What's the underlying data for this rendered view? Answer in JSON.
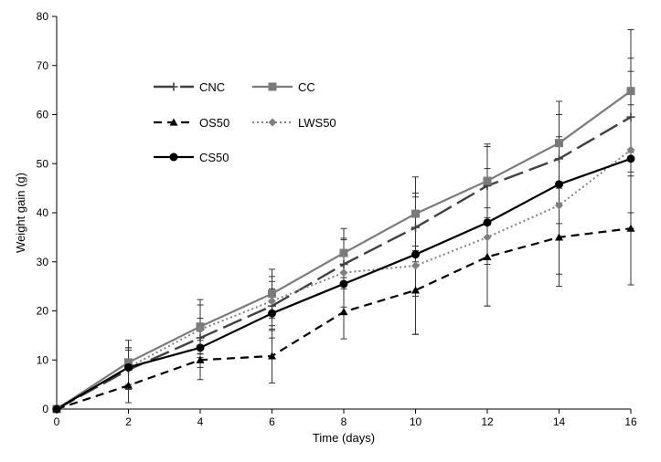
{
  "chart_data": {
    "type": "line",
    "xlabel": "Time (days)",
    "ylabel": "Weight gain (g)",
    "xlim": [
      0,
      16
    ],
    "ylim": [
      0,
      80
    ],
    "x_ticks": [
      0,
      2,
      4,
      6,
      8,
      10,
      12,
      14,
      16
    ],
    "y_ticks": [
      0,
      10,
      20,
      30,
      40,
      50,
      60,
      70,
      80
    ],
    "grid": false,
    "legend_position": "upper-left inside",
    "x": [
      0,
      2,
      4,
      6,
      8,
      10,
      12,
      14,
      16
    ],
    "series": [
      {
        "name": "CNC",
        "marker": "plus",
        "line_style": "long-dash",
        "color": "#404040",
        "values": [
          0,
          8.0,
          14.5,
          21.0,
          29.5,
          37.0,
          45.5,
          51.0,
          59.5
        ],
        "errors": [
          0,
          4,
          4,
          5,
          5,
          7,
          8,
          9,
          12
        ]
      },
      {
        "name": "CC",
        "marker": "square",
        "line_style": "solid",
        "color": "#7a7a7a",
        "values": [
          0,
          9.5,
          16.8,
          23.5,
          31.8,
          39.8,
          46.5,
          54.2,
          64.8
        ],
        "errors": [
          0,
          4.5,
          5.5,
          5,
          5,
          7.5,
          7.5,
          8.5,
          12.5
        ]
      },
      {
        "name": "OS50",
        "marker": "triangle",
        "line_style": "short-dash",
        "color": "#000000",
        "values": [
          0,
          4.8,
          10.0,
          10.8,
          19.8,
          24.2,
          31.0,
          35.0,
          36.8
        ],
        "errors": [
          0,
          3.5,
          4,
          5.5,
          5.5,
          9,
          10,
          10,
          11.5
        ]
      },
      {
        "name": "LWS50",
        "marker": "diamond",
        "line_style": "dotted",
        "color": "#808080",
        "values": [
          0,
          8.5,
          16.2,
          22.0,
          27.8,
          29.2,
          35.0,
          41.5,
          52.8
        ],
        "errors": [
          0,
          4,
          5,
          5,
          7,
          14,
          14,
          14,
          16
        ]
      },
      {
        "name": "CS50",
        "marker": "circle",
        "line_style": "solid",
        "color": "#000000",
        "values": [
          0,
          8.5,
          12.5,
          19.5,
          25.5,
          31.5,
          38.0,
          45.8,
          51.0
        ],
        "errors": [
          0,
          4,
          4,
          5,
          6,
          8.5,
          8.5,
          8,
          11
        ]
      }
    ]
  }
}
